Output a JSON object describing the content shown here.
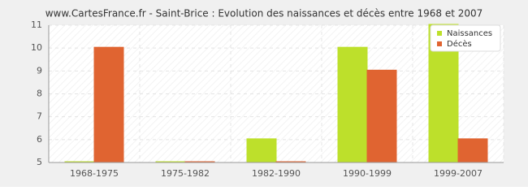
{
  "chart_data": {
    "type": "bar",
    "title": "www.CartesFrance.fr - Saint-Brice : Evolution des naissances et décès entre 1968 et 2007",
    "categories": [
      "1968-1975",
      "1975-1982",
      "1982-1990",
      "1990-1999",
      "1999-2007"
    ],
    "series": [
      {
        "name": "Naissances",
        "color": "#bde02b",
        "values": [
          5,
          5,
          6,
          10,
          11
        ]
      },
      {
        "name": "Décès",
        "color": "#e06431",
        "values": [
          10,
          5,
          5,
          9,
          6
        ]
      }
    ],
    "ylim": [
      5,
      11
    ],
    "yticks": [
      5,
      6,
      7,
      8,
      9,
      10,
      11
    ],
    "grid": true,
    "legend": "top-right"
  }
}
